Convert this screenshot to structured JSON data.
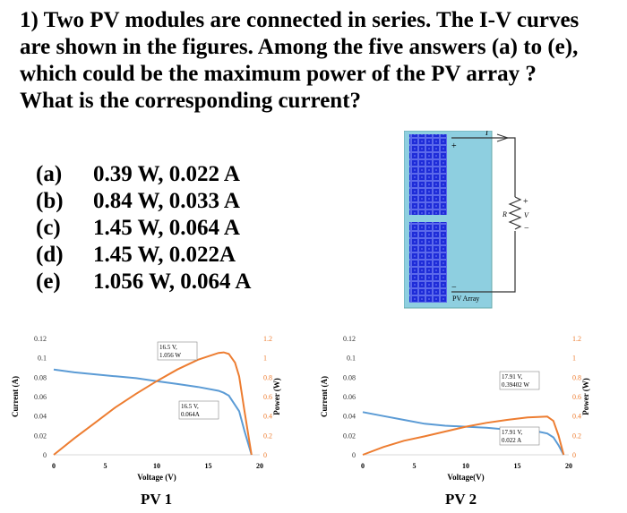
{
  "question": {
    "text": "1) Two PV modules are connected in series. The I-V curves are shown in the figures. Among the five answers (a) to (e), which could be the maximum power of the PV array ? What is the corresponding current?"
  },
  "answers": [
    {
      "label": "(a)",
      "value": "0.39 W, 0.022 A"
    },
    {
      "label": "(b)",
      "value": "0.84 W, 0.033 A"
    },
    {
      "label": "(c)",
      "value": "1.45 W, 0.064 A"
    },
    {
      "label": "(d)",
      "value": "1.45 W, 0.022A"
    },
    {
      "label": "(e)",
      "value": "1.056 W, 0.064 A"
    }
  ],
  "circuit": {
    "current_label": "I",
    "resistor_label": "R",
    "voltage_label": "V",
    "plus": "+",
    "minus": "−",
    "module_plus": "+",
    "module_minus": "−",
    "array_label": "PV Array",
    "colors": {
      "panel_bg": "#8ecfe0",
      "cell": "#1e2cd8"
    }
  },
  "captions": [
    "PV 1",
    "PV 2"
  ],
  "chart_data": [
    {
      "type": "line",
      "caption": "PV 1",
      "xlabel": "Voltage (V)",
      "ylabel": "Current (A)",
      "y2label": "Power (W)",
      "xlim": [
        0,
        20
      ],
      "ylim": [
        0,
        0.12
      ],
      "y2lim": [
        0,
        1.2
      ],
      "xticks": [
        "0",
        "5",
        "10",
        "15",
        "20"
      ],
      "yticks": [
        "0",
        "0.02",
        "0.04",
        "0.06",
        "0.08",
        "0.1",
        "0.12"
      ],
      "y2ticks": [
        "0",
        "0.2",
        "0.4",
        "0.6",
        "0.8",
        "1",
        "1.2"
      ],
      "series": [
        {
          "axis": "left",
          "color": "#5b9bd5",
          "x": [
            0,
            2,
            4,
            6,
            8,
            10,
            12,
            14,
            16,
            16.5,
            17,
            18,
            18.5,
            19.2
          ],
          "y": [
            0.088,
            0.085,
            0.083,
            0.081,
            0.079,
            0.076,
            0.073,
            0.07,
            0.066,
            0.064,
            0.061,
            0.045,
            0.025,
            0
          ]
        },
        {
          "axis": "right",
          "color": "#ed7d31",
          "x": [
            0,
            2,
            4,
            6,
            8,
            10,
            12,
            14,
            16,
            16.5,
            17,
            17.6,
            18,
            18.5,
            19.2
          ],
          "y": [
            0,
            0.17,
            0.33,
            0.49,
            0.63,
            0.76,
            0.88,
            0.98,
            1.05,
            1.056,
            1.04,
            0.95,
            0.81,
            0.46,
            0
          ]
        }
      ],
      "annotations": [
        {
          "lines": [
            "16.5 V,",
            "1.056 W"
          ]
        },
        {
          "lines": [
            "16.5 V,",
            "0.064A"
          ]
        }
      ]
    },
    {
      "type": "line",
      "caption": "PV 2",
      "xlabel": "Voltage(V)",
      "ylabel": "Current (A)",
      "y2label": "Power (W)",
      "xlim": [
        0,
        20
      ],
      "ylim": [
        0,
        0.12
      ],
      "y2lim": [
        0,
        1.2
      ],
      "xticks": [
        "0",
        "5",
        "10",
        "15",
        "20"
      ],
      "yticks": [
        "0",
        "0.02",
        "0.04",
        "0.06",
        "0.08",
        "0.1",
        "0.12"
      ],
      "y2ticks": [
        "0",
        "0.2",
        "0.4",
        "0.6",
        "0.8",
        "1",
        "1.2"
      ],
      "series": [
        {
          "axis": "left",
          "color": "#5b9bd5",
          "x": [
            0,
            2,
            4,
            6,
            8,
            10,
            12,
            14,
            16,
            17,
            17.91,
            18.5,
            19,
            19.5
          ],
          "y": [
            0.044,
            0.04,
            0.036,
            0.032,
            0.03,
            0.029,
            0.028,
            0.026,
            0.025,
            0.024,
            0.022,
            0.018,
            0.01,
            0
          ]
        },
        {
          "axis": "right",
          "color": "#ed7d31",
          "x": [
            0,
            2,
            4,
            6,
            8,
            10,
            12,
            14,
            16,
            17,
            17.91,
            18.5,
            19,
            19.5
          ],
          "y": [
            0,
            0.08,
            0.145,
            0.19,
            0.24,
            0.29,
            0.33,
            0.36,
            0.385,
            0.39,
            0.394,
            0.35,
            0.2,
            0
          ]
        }
      ],
      "annotations": [
        {
          "lines": [
            "17.91 V,",
            "0.39402 W"
          ]
        },
        {
          "lines": [
            "17.91 V,",
            "0.022 A"
          ]
        }
      ]
    }
  ]
}
